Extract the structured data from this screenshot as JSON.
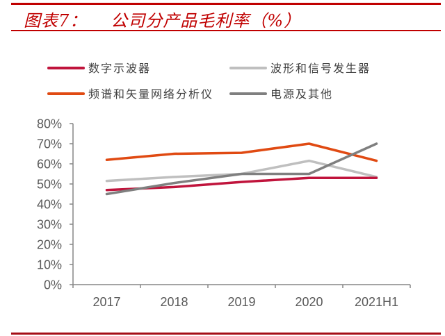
{
  "header": {
    "figure_number": "图表7：",
    "title": "公司分产品毛利率（%）"
  },
  "chart_data": {
    "type": "line",
    "title": "公司分产品毛利率（%）",
    "xlabel": "",
    "ylabel": "",
    "categories": [
      "2017",
      "2018",
      "2019",
      "2020",
      "2021H1"
    ],
    "ylim": [
      0,
      80
    ],
    "yticks": [
      "0%",
      "10%",
      "20%",
      "30%",
      "40%",
      "50%",
      "60%",
      "70%",
      "80%"
    ],
    "ytick_values": [
      0,
      10,
      20,
      30,
      40,
      50,
      60,
      70,
      80
    ],
    "grid": false,
    "legend_position": "top",
    "series": [
      {
        "name": "数字示波器",
        "color": "#c0143c",
        "values": [
          47.0,
          48.5,
          51.0,
          53.0,
          53.0
        ]
      },
      {
        "name": "波形和信号发生器",
        "color": "#bfbfbf",
        "values": [
          51.5,
          53.5,
          55.0,
          61.5,
          53.5
        ]
      },
      {
        "name": "频谱和矢量网络分析仪",
        "color": "#e04a12",
        "values": [
          62.0,
          65.0,
          65.5,
          70.0,
          61.5
        ]
      },
      {
        "name": "电源及其他",
        "color": "#7f7f7f",
        "values": [
          45.0,
          50.5,
          55.0,
          55.0,
          70.0
        ]
      }
    ]
  }
}
